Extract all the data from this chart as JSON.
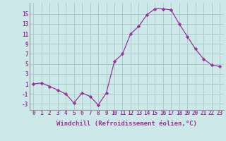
{
  "x": [
    0,
    1,
    2,
    3,
    4,
    5,
    6,
    7,
    8,
    9,
    10,
    11,
    12,
    13,
    14,
    15,
    16,
    17,
    18,
    19,
    20,
    21,
    22,
    23
  ],
  "y": [
    1,
    1.2,
    0.5,
    -0.2,
    -1,
    -2.8,
    -0.8,
    -1.5,
    -3.2,
    -0.8,
    5.5,
    7,
    11,
    12.5,
    14.8,
    16,
    16,
    15.8,
    13,
    10.5,
    8,
    6,
    4.8,
    4.5
  ],
  "line_color": "#993399",
  "marker": "D",
  "marker_size": 2.2,
  "bg_color": "#cce8e8",
  "grid_color": "#aacccc",
  "xlabel": "Windchill (Refroidissement éolien,°C)",
  "xlabel_color": "#993399",
  "yticks": [
    -3,
    -1,
    1,
    3,
    5,
    7,
    9,
    11,
    13,
    15
  ],
  "ylim": [
    -4.2,
    17.2
  ],
  "xlim": [
    -0.5,
    23.5
  ],
  "tick_fontsize": 5.5,
  "xlabel_fontsize": 6.5
}
